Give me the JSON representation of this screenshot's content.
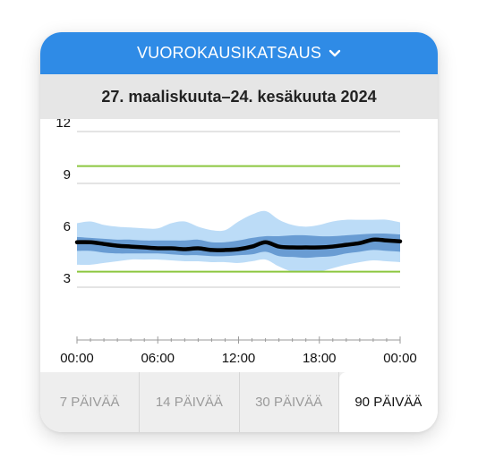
{
  "header": {
    "title": "VUOROKAUSIKATSAUS",
    "chevron_icon": "chevron-down-icon"
  },
  "date_range": "27. maaliskuuta–24. kesäkuuta 2024",
  "chart_data": {
    "type": "area",
    "title": "",
    "xlabel": "",
    "ylabel": "",
    "ylim": [
      0,
      12
    ],
    "yticks": [
      "3",
      "6",
      "9",
      "12"
    ],
    "xticks": [
      "00:00",
      "06:00",
      "12:00",
      "18:00",
      "00:00"
    ],
    "target_range": [
      3.9,
      10.0
    ],
    "grid": true,
    "x_hours": [
      0,
      1,
      2,
      3,
      4,
      5,
      6,
      7,
      8,
      9,
      10,
      11,
      12,
      13,
      14,
      15,
      16,
      17,
      18,
      19,
      20,
      21,
      22,
      23,
      24
    ],
    "series": [
      {
        "role": "median",
        "values": [
          5.6,
          5.6,
          5.5,
          5.4,
          5.35,
          5.3,
          5.25,
          5.25,
          5.2,
          5.25,
          5.15,
          5.15,
          5.2,
          5.35,
          5.6,
          5.35,
          5.3,
          5.3,
          5.3,
          5.35,
          5.45,
          5.55,
          5.75,
          5.7,
          5.65
        ]
      },
      {
        "role": "p25-p75",
        "low": [
          5.1,
          5.1,
          5.0,
          4.95,
          4.95,
          4.95,
          4.95,
          4.9,
          4.85,
          4.85,
          4.8,
          4.8,
          4.85,
          4.9,
          5.05,
          4.8,
          4.75,
          4.7,
          4.75,
          4.8,
          4.95,
          5.05,
          5.15,
          5.1,
          5.05
        ],
        "high": [
          5.9,
          5.85,
          5.8,
          5.75,
          5.75,
          5.7,
          5.7,
          5.7,
          5.7,
          5.75,
          5.6,
          5.6,
          5.7,
          5.85,
          5.95,
          5.95,
          6.0,
          6.0,
          5.95,
          5.95,
          6.0,
          6.05,
          6.1,
          6.1,
          6.05
        ]
      },
      {
        "role": "p10-p90",
        "low": [
          4.3,
          4.3,
          4.4,
          4.5,
          4.6,
          4.6,
          4.6,
          4.55,
          4.5,
          4.5,
          4.45,
          4.45,
          4.4,
          4.5,
          4.6,
          4.2,
          3.9,
          3.9,
          3.9,
          4.1,
          4.3,
          4.45,
          4.55,
          4.5,
          4.45
        ]
      },
      {
        "role": "p10-p90",
        "high": [
          6.7,
          6.8,
          6.6,
          6.5,
          6.45,
          6.4,
          6.4,
          6.7,
          6.8,
          6.5,
          6.3,
          6.3,
          6.8,
          7.2,
          7.4,
          6.9,
          6.6,
          6.5,
          6.6,
          6.8,
          6.9,
          6.9,
          6.9,
          6.9,
          6.75
        ]
      }
    ],
    "colors": {
      "median": "#000000",
      "inner_band": "#5b91cc",
      "outer_band": "#bcdcf7",
      "target_line": "#8cc63f",
      "grid": "#c8c8c8"
    }
  },
  "tabs": [
    {
      "label": "7 PÄIVÄÄ",
      "active": false
    },
    {
      "label": "14 PÄIVÄÄ",
      "active": false
    },
    {
      "label": "30 PÄIVÄÄ",
      "active": false
    },
    {
      "label": "90 PÄIVÄÄ",
      "active": true
    }
  ]
}
